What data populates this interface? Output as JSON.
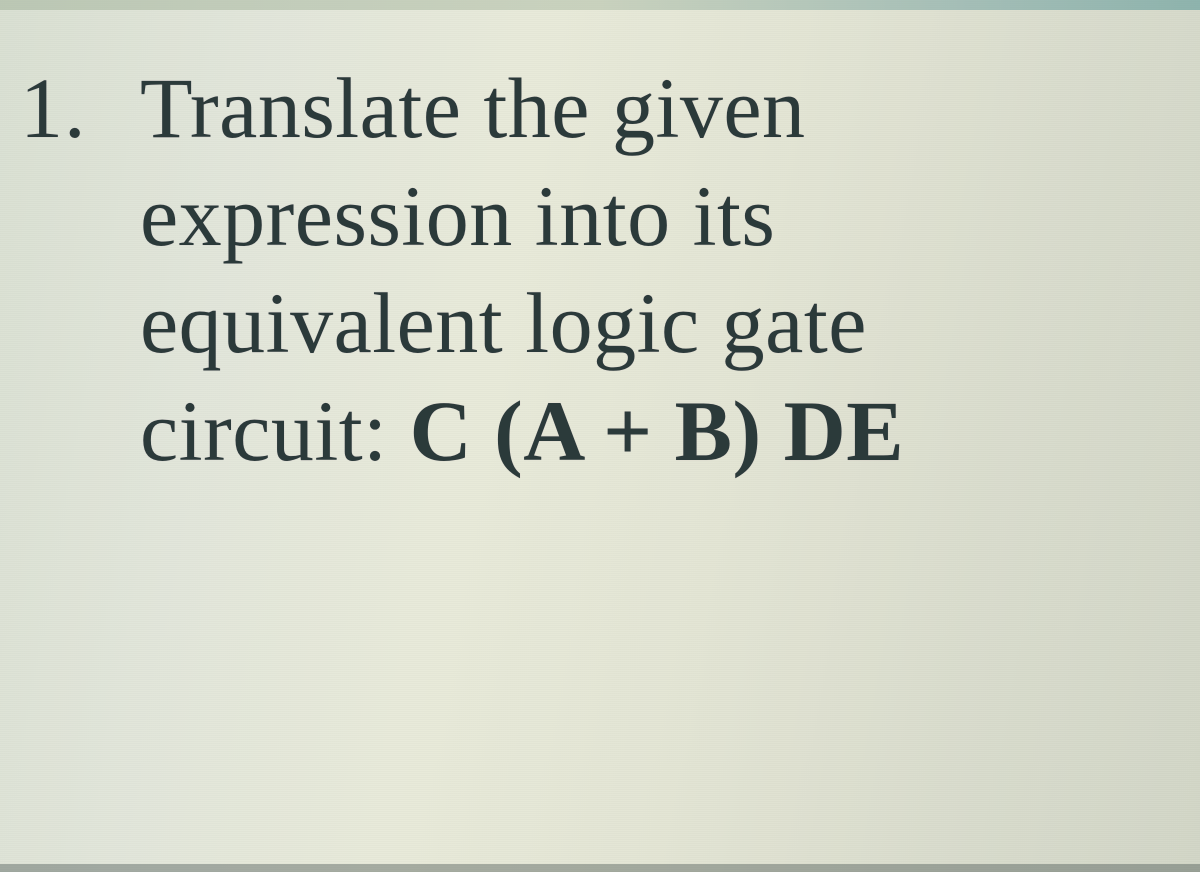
{
  "question": {
    "number": "1.",
    "line1": "Translate the given",
    "line2": "expression into its",
    "line3": "equivalent logic gate",
    "line4_label": "circuit: ",
    "line4_formula": "C (A  +  B) DE"
  },
  "style": {
    "text_color": "#2b3a3a",
    "background_tint": "#e2e6d6",
    "font_family": "Georgia, 'Times New Roman', serif",
    "font_size_pt": 64
  }
}
